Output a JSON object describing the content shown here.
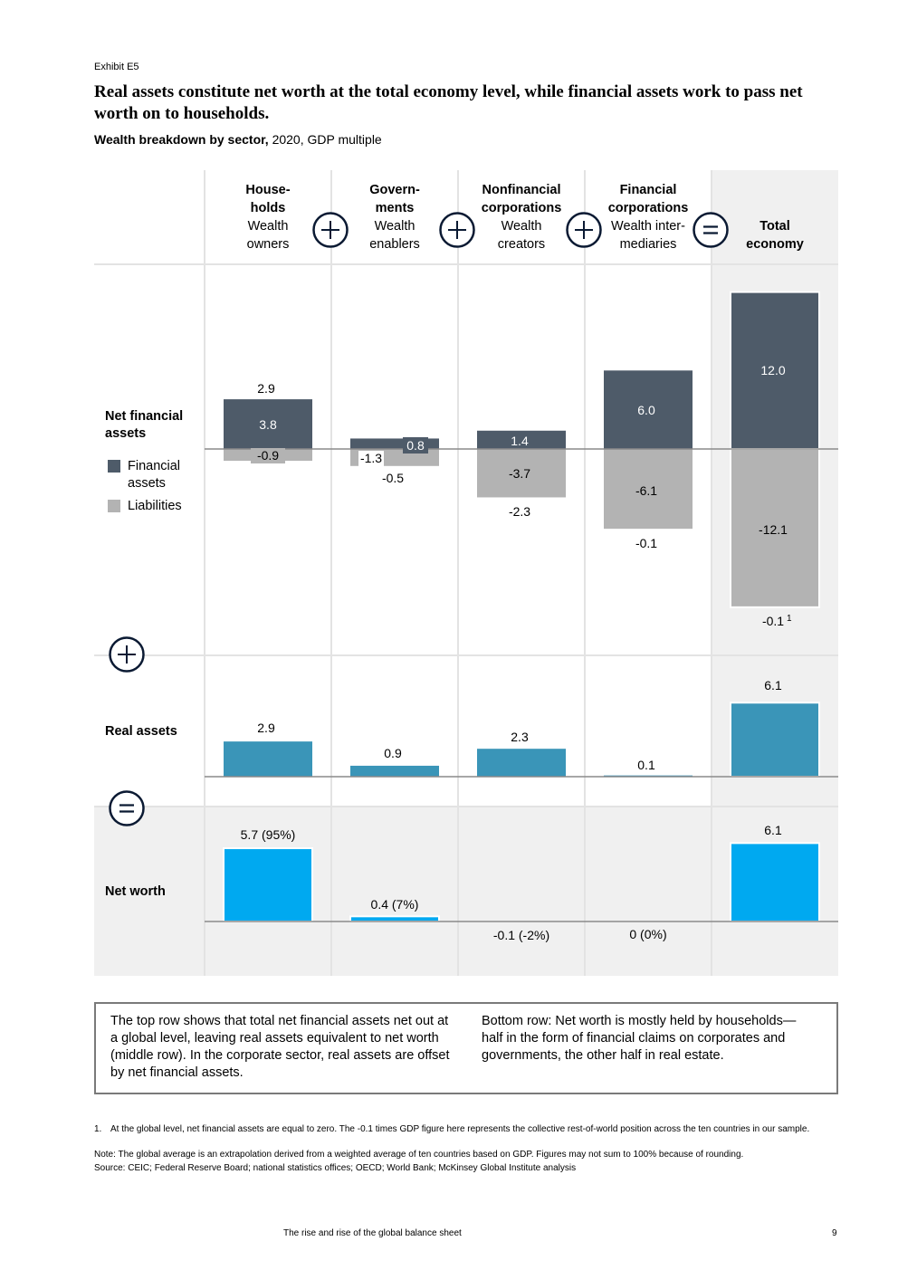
{
  "exhibit": "Exhibit E5",
  "title": "Real assets constitute net worth at the total economy level, while financial assets work to pass net worth on to households.",
  "subtitle_bold": "Wealth breakdown by sector,",
  "subtitle_rest": " 2020, GDP multiple",
  "columns": [
    {
      "title_lines": [
        "House-",
        "holds"
      ],
      "sub_lines": [
        "Wealth",
        "owners"
      ]
    },
    {
      "title_lines": [
        "Govern-",
        "ments"
      ],
      "sub_lines": [
        "Wealth",
        "enablers"
      ]
    },
    {
      "title_lines": [
        "Nonfinancial",
        "corporations"
      ],
      "sub_lines": [
        "Wealth",
        "creators"
      ]
    },
    {
      "title_lines": [
        "Financial",
        "corporations"
      ],
      "sub_lines": [
        "Wealth inter-",
        "mediaries"
      ]
    },
    {
      "title_lines": [
        "Total",
        "economy"
      ],
      "sub_lines": []
    }
  ],
  "operators": {
    "plus": "+",
    "equals": "="
  },
  "rows": {
    "net_financial_assets": [
      "Net financial",
      "assets"
    ],
    "real_assets": "Real assets",
    "net_worth": "Net worth"
  },
  "legend": {
    "financial_assets": [
      "Financial",
      "assets"
    ],
    "liabilities": "Liabilities"
  },
  "colors": {
    "financial_assets": "#4e5b69",
    "liabilities": "#b3b3b3",
    "real_assets": "#3a95b8",
    "net_worth": "#00a9f0",
    "total_band": "#f0f0f0",
    "grid": "#e3e3e3",
    "baseline": "#8a8a8a"
  },
  "chart_data": [
    {
      "type": "bar",
      "title": "Net financial assets",
      "categories": [
        "Households",
        "Governments",
        "Nonfinancial corporations",
        "Financial corporations",
        "Total economy"
      ],
      "series": [
        {
          "name": "Financial assets",
          "values": [
            3.8,
            0.8,
            1.4,
            6.0,
            12.0
          ]
        },
        {
          "name": "Liabilities",
          "values": [
            -0.9,
            -1.3,
            -3.7,
            -6.1,
            -12.1
          ]
        }
      ],
      "net_labels": [
        "2.9",
        "-0.5",
        "-2.3",
        "-0.1",
        "-0.1"
      ],
      "footnote_marker": "1"
    },
    {
      "type": "bar",
      "title": "Real assets",
      "categories": [
        "Households",
        "Governments",
        "Nonfinancial corporations",
        "Financial corporations",
        "Total economy"
      ],
      "values": [
        2.9,
        0.9,
        2.3,
        0.1,
        6.1
      ],
      "labels": [
        "2.9",
        "0.9",
        "2.3",
        "0.1",
        "6.1"
      ]
    },
    {
      "type": "bar",
      "title": "Net worth",
      "categories": [
        "Households",
        "Governments",
        "Nonfinancial corporations",
        "Financial corporations",
        "Total economy"
      ],
      "values": [
        5.7,
        0.4,
        -0.1,
        0,
        6.1
      ],
      "labels": [
        "5.7 (95%)",
        "0.4 (7%)",
        "-0.1 (-2%)",
        "0 (0%)",
        "6.1"
      ]
    }
  ],
  "notes": {
    "left": "The top row shows that total net financial assets net out at a global level, leaving real assets equivalent to net worth (middle row). In the corporate sector, real assets are offset by net financial assets.",
    "right": "Bottom row: Net worth is mostly held by households—half in the form of financial claims on corporates and governments, the other half in real estate."
  },
  "footnotes": {
    "fn1_marker": "1.",
    "fn1": "At the global level, net financial assets are equal to zero. The -0.1 times GDP figure here represents the collective rest-of-world position across the ten countries in our sample.",
    "note": "Note: The global average is an extrapolation derived from a weighted average of ten countries based on GDP. Figures may not sum to 100% because of rounding.",
    "source": "Source: CEIC; Federal Reserve Board; national statistics offices; OECD; World Bank; McKinsey Global Institute analysis"
  },
  "footer": {
    "title": "The rise and rise of the global balance sheet",
    "page": "9"
  }
}
